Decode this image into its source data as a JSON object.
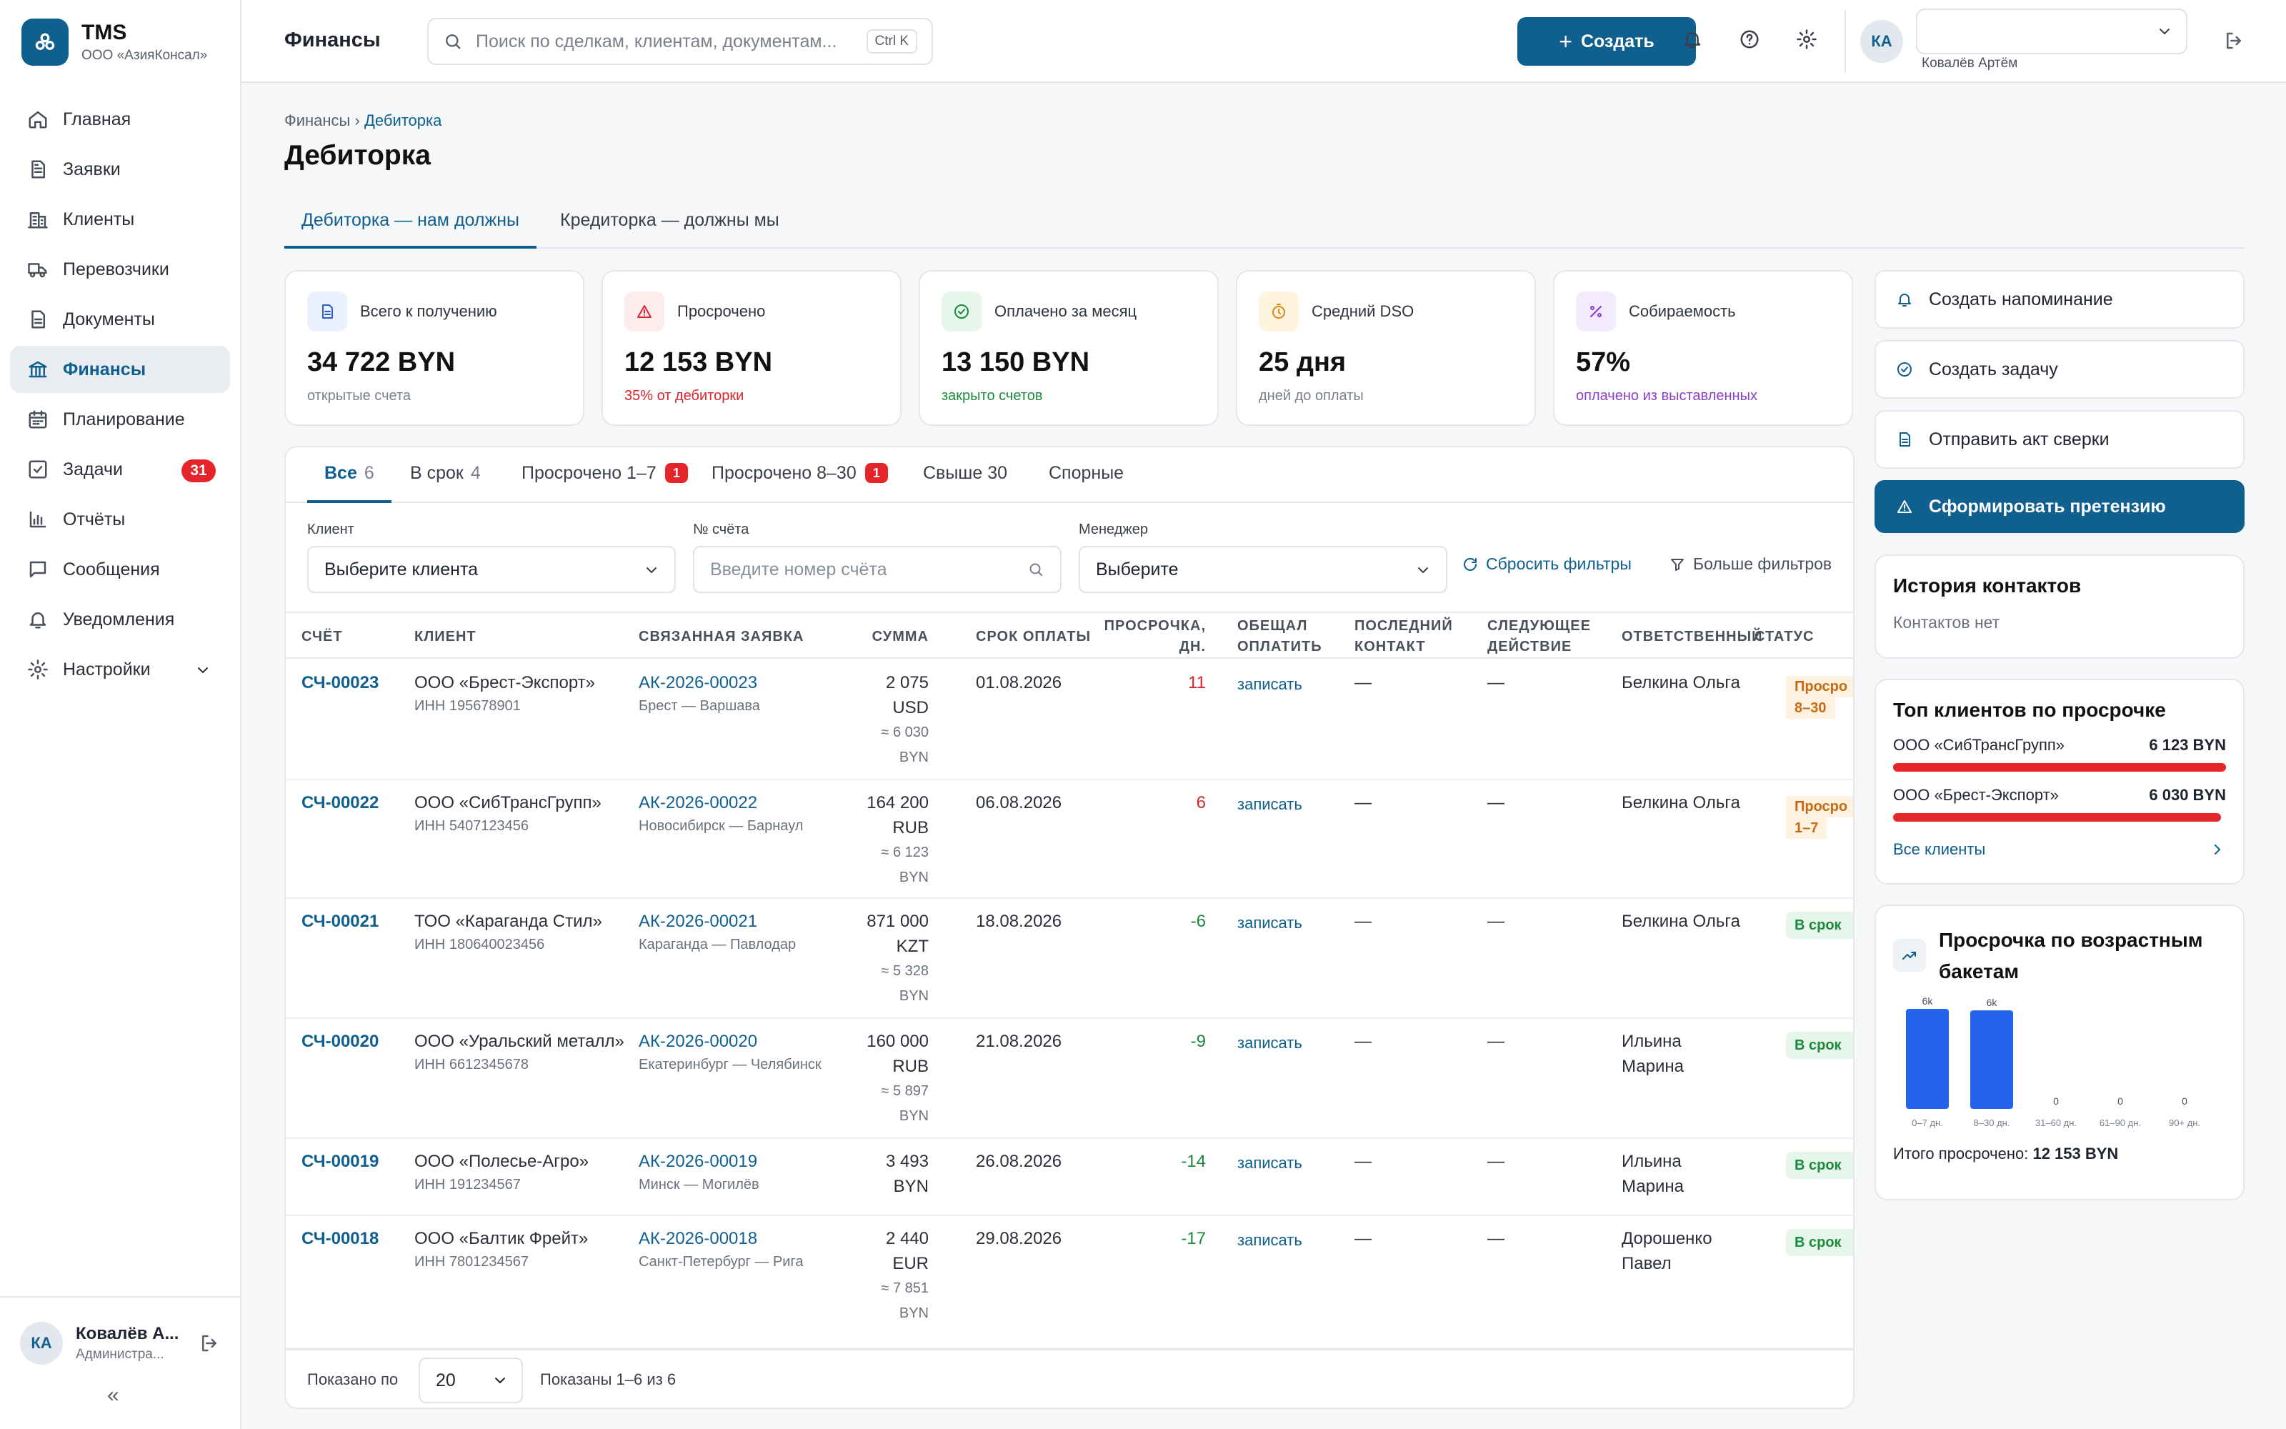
{
  "app": {
    "name": "TMS",
    "org": "ООО «АзияКонсал»"
  },
  "sidebar": {
    "items": [
      {
        "label": "Главная",
        "icon": "home-icon"
      },
      {
        "label": "Заявки",
        "icon": "file-icon"
      },
      {
        "label": "Клиенты",
        "icon": "building-icon"
      },
      {
        "label": "Перевозчики",
        "icon": "truck-icon"
      },
      {
        "label": "Документы",
        "icon": "document-icon"
      },
      {
        "label": "Финансы",
        "icon": "bank-icon",
        "active": true
      },
      {
        "label": "Планирование",
        "icon": "calendar-icon"
      },
      {
        "label": "Задачи",
        "icon": "checkbox-icon",
        "badge": "31"
      },
      {
        "label": "Отчёты",
        "icon": "bar-chart-icon"
      },
      {
        "label": "Сообщения",
        "icon": "message-icon"
      },
      {
        "label": "Уведомления",
        "icon": "bell-icon"
      },
      {
        "label": "Настройки",
        "icon": "gear-icon",
        "expandable": true
      }
    ],
    "user": {
      "initials": "КА",
      "name": "Ковалёв А...",
      "role": "Администра..."
    },
    "collapse_label": "«"
  },
  "topbar": {
    "title": "Финансы",
    "search_placeholder": "Поиск по сделкам, клиентам, документам...",
    "search_shortcut": "Ctrl K",
    "create_label": "Создать",
    "user_initials": "КА",
    "user_name": "Ковалёв Артём",
    "role_select_value": ""
  },
  "page": {
    "breadcrumb_root": "Финансы",
    "breadcrumb_sep": "›",
    "breadcrumb_current": "Дебиторка",
    "title": "Дебиторка",
    "tabs": [
      "Дебиторка — нам должны",
      "Кредиторка — должны мы"
    ]
  },
  "kpis": [
    {
      "label": "Всего к получению",
      "value": "34 722 BYN",
      "sub": "открытые счета",
      "icon": "document-icon",
      "color": "#2f5bd3",
      "bg": "#eaf0fd",
      "sub_color": "#7a808b"
    },
    {
      "label": "Просрочено",
      "value": "12 153 BYN",
      "sub": "35% от дебиторки",
      "icon": "warning-icon",
      "color": "#d8262c",
      "bg": "#fdecec",
      "sub_color": "#d8262c"
    },
    {
      "label": "Оплачено за месяц",
      "value": "13 150 BYN",
      "sub": "закрыто счетов",
      "icon": "check-circle-icon",
      "color": "#1c8a3c",
      "bg": "#e6f6ea",
      "sub_color": "#1c8a3c"
    },
    {
      "label": "Средний DSO",
      "value": "25 дня",
      "sub": "дней до оплаты",
      "icon": "stopwatch-icon",
      "color": "#d98a10",
      "bg": "#fff4e0",
      "sub_color": "#7a808b"
    },
    {
      "label": "Собираемость",
      "value": "57%",
      "sub": "оплачено из выставленных",
      "icon": "percent-icon",
      "color": "#8a3fc8",
      "bg": "#f3eafb",
      "sub_color": "#8a3fc8"
    }
  ],
  "filter_tabs": [
    {
      "label": "Все",
      "count": "6",
      "active": true
    },
    {
      "label": "В срок",
      "count": "4"
    },
    {
      "label": "Просрочено 1–7",
      "badge": "1"
    },
    {
      "label": "Просрочено 8–30",
      "badge": "1"
    },
    {
      "label": "Свыше 30"
    },
    {
      "label": "Спорные"
    }
  ],
  "filters": {
    "client_label": "Клиент",
    "client_value": "Выберите клиента",
    "invoice_label": "№ счёта",
    "invoice_placeholder": "Введите номер счёта",
    "manager_label": "Менеджер",
    "manager_value": "Выберите",
    "reset_label": "Сбросить фильтры",
    "more_label": "Больше фильтров"
  },
  "table": {
    "columns": [
      "СЧЁТ",
      "КЛИЕНТ",
      "СВЯЗАННАЯ ЗАЯВКА",
      "СУММА",
      "СРОК ОПЛАТЫ",
      "ПРОСРОЧКА, ДН.",
      "ОБЕЩАЛ ОПЛАТИТЬ",
      "ПОСЛЕДНИЙ КОНТАКТ",
      "СЛЕДУЮЩЕЕ ДЕЙСТВИЕ",
      "ОТВЕТСТВЕННЫЙ",
      "СТАТУС"
    ],
    "rows": [
      {
        "invoice": "СЧ-00023",
        "client": "ООО «Брест-Экспорт»",
        "inn": "ИНН 195678901",
        "order": "АК-2026-00023",
        "route": "Брест — Варшава",
        "amount": "2 075",
        "currency": "USD",
        "conv": "≈ 6 030",
        "conv_cur": "BYN",
        "due": "01.08.2026",
        "delay": "11",
        "delay_color": "#d8262c",
        "promise": "записать",
        "last": "—",
        "next": "—",
        "owner": "Белкина Ольга",
        "status": "Просро",
        "status2": "8–30",
        "status_type": "warn"
      },
      {
        "invoice": "СЧ-00022",
        "client": "ООО «СибТрансГрупп»",
        "inn": "ИНН 5407123456",
        "order": "АК-2026-00022",
        "route": "Новосибирск — Барнаул",
        "amount": "164 200",
        "currency": "RUB",
        "conv": "≈ 6 123",
        "conv_cur": "BYN",
        "due": "06.08.2026",
        "delay": "6",
        "delay_color": "#d8262c",
        "promise": "записать",
        "last": "—",
        "next": "—",
        "owner": "Белкина Ольга",
        "status": "Просро",
        "status2": "1–7",
        "status_type": "warn"
      },
      {
        "invoice": "СЧ-00021",
        "client": "ТОО «Караганда Стил»",
        "inn": "ИНН 180640023456",
        "order": "АК-2026-00021",
        "route": "Караганда — Павлодар",
        "amount": "871 000",
        "currency": "KZT",
        "conv": "≈ 5 328",
        "conv_cur": "BYN",
        "due": "18.08.2026",
        "delay": "-6",
        "delay_color": "#1c8a3c",
        "promise": "записать",
        "last": "—",
        "next": "—",
        "owner": "Белкина Ольга",
        "status": "В срок",
        "status2": "",
        "status_type": "ok"
      },
      {
        "invoice": "СЧ-00020",
        "client": "ООО «Уральский металл»",
        "inn": "ИНН 6612345678",
        "order": "АК-2026-00020",
        "route": "Екатеринбург — Челябинск",
        "amount": "160 000",
        "currency": "RUB",
        "conv": "≈ 5 897",
        "conv_cur": "BYN",
        "due": "21.08.2026",
        "delay": "-9",
        "delay_color": "#1c8a3c",
        "promise": "записать",
        "last": "—",
        "next": "—",
        "owner": "Ильина Марина",
        "status": "В срок",
        "status2": "",
        "status_type": "ok"
      },
      {
        "invoice": "СЧ-00019",
        "client": "ООО «Полесье-Агро»",
        "inn": "ИНН 191234567",
        "order": "АК-2026-00019",
        "route": "Минск — Могилёв",
        "amount": "3 493",
        "currency": "BYN",
        "conv": "",
        "conv_cur": "",
        "due": "26.08.2026",
        "delay": "-14",
        "delay_color": "#1c8a3c",
        "promise": "записать",
        "last": "—",
        "next": "—",
        "owner": "Ильина Марина",
        "status": "В срок",
        "status2": "",
        "status_type": "ok"
      },
      {
        "invoice": "СЧ-00018",
        "client": "ООО «Балтик Фрейт»",
        "inn": "ИНН 7801234567",
        "order": "АК-2026-00018",
        "route": "Санкт-Петербург — Рига",
        "amount": "2 440",
        "currency": "EUR",
        "conv": "≈ 7 851",
        "conv_cur": "BYN",
        "due": "29.08.2026",
        "delay": "-17",
        "delay_color": "#1c8a3c",
        "promise": "записать",
        "last": "—",
        "next": "—",
        "owner": "Дорошенко Павел",
        "status": "В срок",
        "status2": "",
        "status_type": "ok"
      }
    ],
    "footer_shown_by": "Показано по",
    "page_size": "20",
    "footer_range": "Показаны 1–6 из 6"
  },
  "actions": [
    {
      "label": "Создать напоминание",
      "icon": "bell-icon"
    },
    {
      "label": "Создать задачу",
      "icon": "check-circle-icon"
    },
    {
      "label": "Отправить акт сверки",
      "icon": "document-icon"
    },
    {
      "label": "Сформировать претензию",
      "icon": "warning-icon",
      "primary": true
    }
  ],
  "contact_history": {
    "title": "История контактов",
    "empty": "Контактов нет"
  },
  "top_clients": {
    "title": "Топ клиентов по просрочке",
    "items": [
      {
        "name": "ООО «СибТрансГрупп»",
        "value": "6 123 BYN",
        "amount": 6123
      },
      {
        "name": "ООО «Брест-Экспорт»",
        "value": "6 030 BYN",
        "amount": 6030
      }
    ],
    "all_label": "Все клиенты",
    "bar_color": "#e5252a"
  },
  "chart_data": {
    "type": "bar",
    "title": "Просрочка по возрастным бакетам",
    "categories": [
      "0–7 дн.",
      "8–30 дн.",
      "31–60 дн.",
      "61–90 дн.",
      "90+ дн."
    ],
    "values": [
      6123,
      6030,
      0,
      0,
      0
    ],
    "data_labels": [
      "6k",
      "6k",
      "0",
      "0",
      "0"
    ],
    "bar_color": "#2563eb",
    "total_label": "Итого просрочено:",
    "total_value": "12 153 BYN"
  }
}
